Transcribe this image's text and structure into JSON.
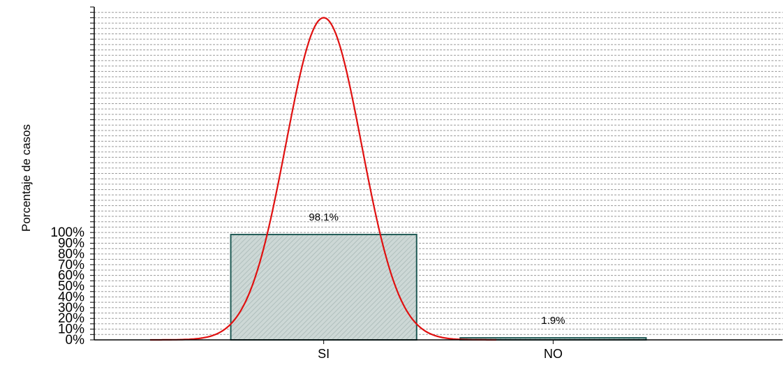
{
  "chart_data": {
    "type": "bar",
    "title": "",
    "xlabel": "",
    "ylabel": "Porcentaje de casos",
    "categories": [
      "SI",
      "NO"
    ],
    "values": [
      98.1,
      1.9
    ],
    "data_labels": [
      "98.1%",
      "1.9%"
    ],
    "y_ticks": [
      "0%",
      "10%",
      "20%",
      "30%",
      "40%",
      "50%",
      "60%",
      "70%",
      "80%",
      "90%",
      "100%"
    ],
    "ylim": [
      0,
      310
    ],
    "grid": true,
    "legend": "none",
    "overlay": {
      "type": "normal-curve",
      "color": "#e01010",
      "peak_value": 300,
      "center_category": "SI"
    },
    "bar_fill_color": "#c7d3d1",
    "bar_edge_color": "#1f5a55"
  }
}
